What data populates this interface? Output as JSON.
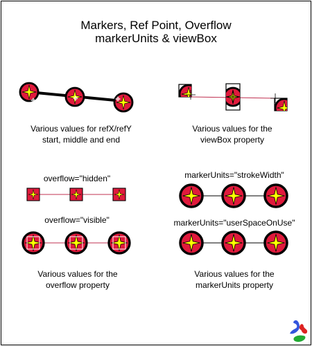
{
  "title": {
    "line1": "Markers, Ref Point, Overflow",
    "line2": "markerUnits & viewBox"
  },
  "captions": {
    "refxy_line1": "Various values for refX/refY",
    "refxy_line2": "start, middle and end",
    "viewbox_line1": "Various values for the",
    "viewbox_line2": "viewBox property",
    "overflow_line1": "Various values for the",
    "overflow_line2": "overflow property",
    "markerunits_line1": "Various values for the",
    "markerunits_line2": "markerUnits property"
  },
  "labels": {
    "overflow_hidden": "overflow=\"hidden\"",
    "overflow_visible": "overflow=\"visible\"",
    "units_stroke_width": "markerUnits=\"strokeWidth\"",
    "units_user_space": "markerUnits=\"userSpaceOnUse\""
  },
  "colors": {
    "marker_fill": "#e01a3c",
    "star_fill": "#ffff00",
    "outline": "#000000",
    "thin_line": "#c03050",
    "logo_blue": "#3355dd",
    "logo_red": "#dd2222",
    "logo_green": "#22aa33"
  },
  "icons": {
    "marker": "star-marker-icon",
    "logo": "svg-logo-icon"
  }
}
